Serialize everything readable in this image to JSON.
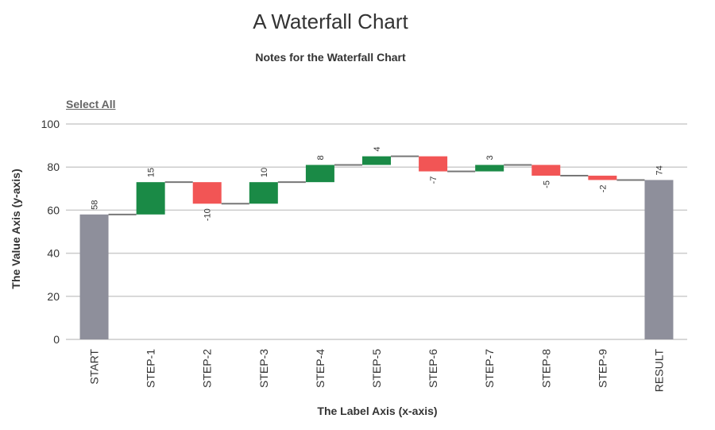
{
  "chart_data": {
    "type": "bar",
    "subtype": "waterfall",
    "title": "A Waterfall Chart",
    "subtitle": "Notes for the Waterfall Chart",
    "xlabel": "The Label Axis (x-axis)",
    "ylabel": "The Value Axis (y-axis)",
    "ylim": [
      0,
      100
    ],
    "yticks": [
      0,
      20,
      40,
      60,
      80,
      100
    ],
    "grid": true,
    "legend_action": "Select All",
    "categories": [
      "START",
      "STEP-1",
      "STEP-2",
      "STEP-3",
      "STEP-4",
      "STEP-5",
      "STEP-6",
      "STEP-7",
      "STEP-8",
      "STEP-9",
      "RESULT"
    ],
    "values": [
      58,
      15,
      -10,
      10,
      8,
      4,
      -7,
      3,
      -5,
      -2,
      74
    ],
    "kinds": [
      "total",
      "delta",
      "delta",
      "delta",
      "delta",
      "delta",
      "delta",
      "delta",
      "delta",
      "delta",
      "total"
    ],
    "colors": {
      "total": "#8e8f9b",
      "increase": "#1a8a46",
      "decrease": "#f25555",
      "connector": "#777777",
      "grid": "#cccccc"
    }
  }
}
